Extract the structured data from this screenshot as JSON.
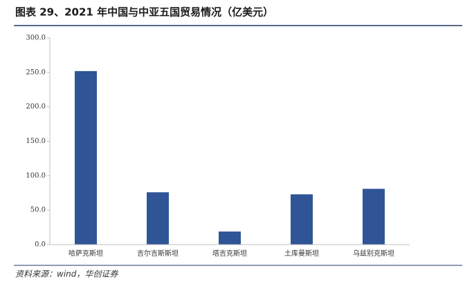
{
  "chart_data": {
    "type": "bar",
    "title": "图表 29、2021 年中国与中亚五国贸易情况（亿美元）",
    "source": "资料来源：wind，华创证券",
    "categories": [
      "哈萨克斯坦",
      "吉尔吉斯斯坦",
      "塔吉克斯坦",
      "土库曼斯坦",
      "乌兹别克斯坦"
    ],
    "values": [
      252,
      76,
      19,
      73,
      81
    ],
    "color": "#2f5597",
    "ylim": [
      0,
      300
    ],
    "yticks": [
      {
        "value": 0,
        "label": "0.0"
      },
      {
        "value": 50,
        "label": "50.0"
      },
      {
        "value": 100,
        "label": "100.0"
      },
      {
        "value": 150,
        "label": "150.0"
      },
      {
        "value": 200,
        "label": "200.0"
      },
      {
        "value": 250,
        "label": "250.0"
      },
      {
        "value": 300,
        "label": "300.0"
      }
    ],
    "grid": false
  }
}
